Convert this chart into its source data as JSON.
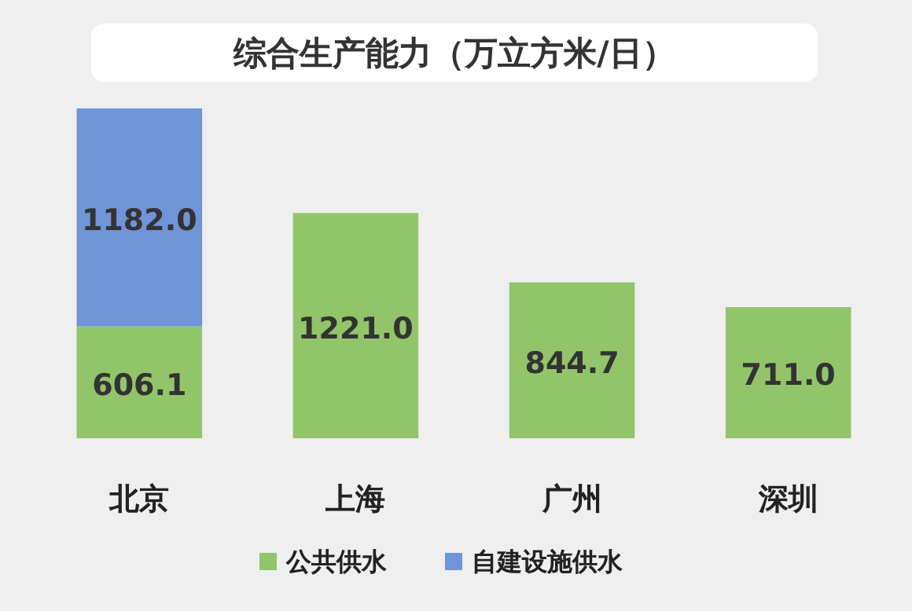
{
  "chart_data": {
    "type": "bar",
    "title": "综合生产能力（万立方米/日）",
    "categories": [
      "北京",
      "上海",
      "广州",
      "深圳"
    ],
    "stacked": true,
    "legend": "bottom",
    "series": [
      {
        "name": "公共供水",
        "color": "#92c569",
        "values": [
          606.1,
          1221.0,
          844.7,
          711.0
        ],
        "value_labels": [
          "606.1",
          "1221.0",
          "844.7",
          "711.0"
        ]
      },
      {
        "name": "自建设施供水",
        "color": "#6f95d8",
        "values": [
          1182.0,
          null,
          null,
          null
        ],
        "value_labels": [
          "1182.0",
          null,
          null,
          null
        ]
      }
    ]
  }
}
